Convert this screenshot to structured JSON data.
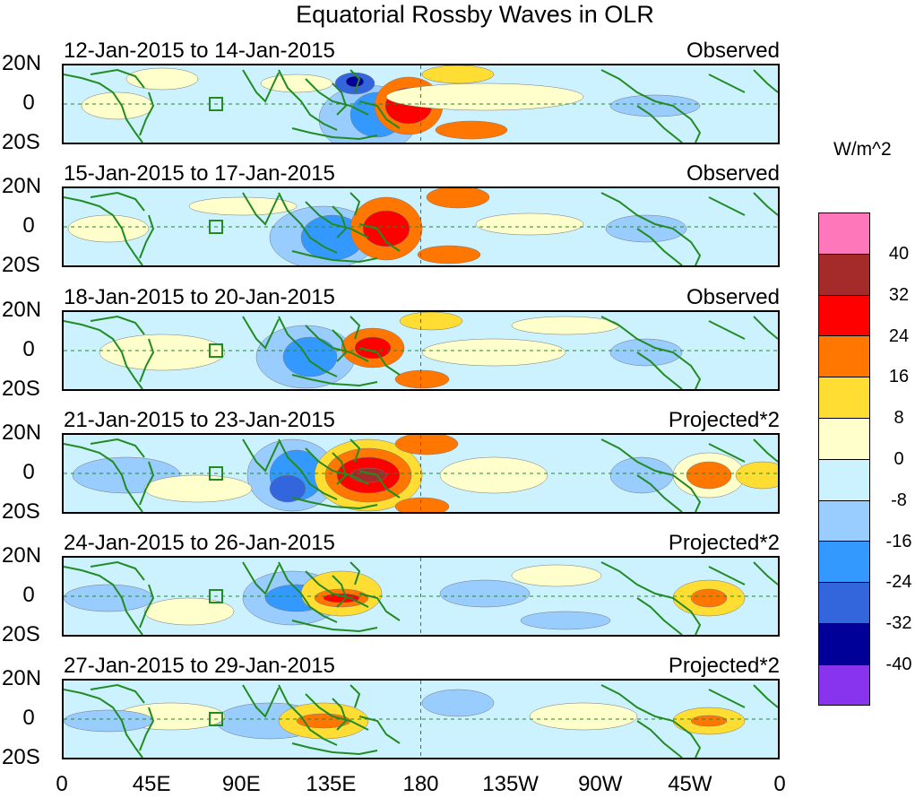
{
  "title": "Equatorial Rossby Waves in OLR",
  "units": "W/m^2",
  "panels": [
    {
      "dates": "12-Jan-2015 to 14-Jan-2015",
      "kind": "Observed"
    },
    {
      "dates": "15-Jan-2015 to 17-Jan-2015",
      "kind": "Observed"
    },
    {
      "dates": "18-Jan-2015 to 20-Jan-2015",
      "kind": "Observed"
    },
    {
      "dates": "21-Jan-2015 to 23-Jan-2015",
      "kind": "Projected*2"
    },
    {
      "dates": "24-Jan-2015 to 26-Jan-2015",
      "kind": "Projected*2"
    },
    {
      "dates": "27-Jan-2015 to 29-Jan-2015",
      "kind": "Projected*2"
    }
  ],
  "lat_labels": [
    "20N",
    "0",
    "20S"
  ],
  "lon_labels": [
    "0",
    "45E",
    "90E",
    "135E",
    "180",
    "135W",
    "90W",
    "45W",
    "0"
  ],
  "colorbar": {
    "colors": [
      "#ff77bb",
      "#a52a2a",
      "#ff0000",
      "#ff7700",
      "#ffdd33",
      "#ffffcc",
      "#ccf2ff",
      "#99ccff",
      "#3399ff",
      "#3366dd",
      "#000099",
      "#8833ee"
    ],
    "ticks": [
      "40",
      "32",
      "24",
      "16",
      "8",
      "0",
      "-8",
      "-16",
      "-24",
      "-32",
      "-40"
    ]
  },
  "palette": {
    "coast": "#228b22",
    "grid": "#228b22",
    "bg": "#ccf2ff"
  }
}
